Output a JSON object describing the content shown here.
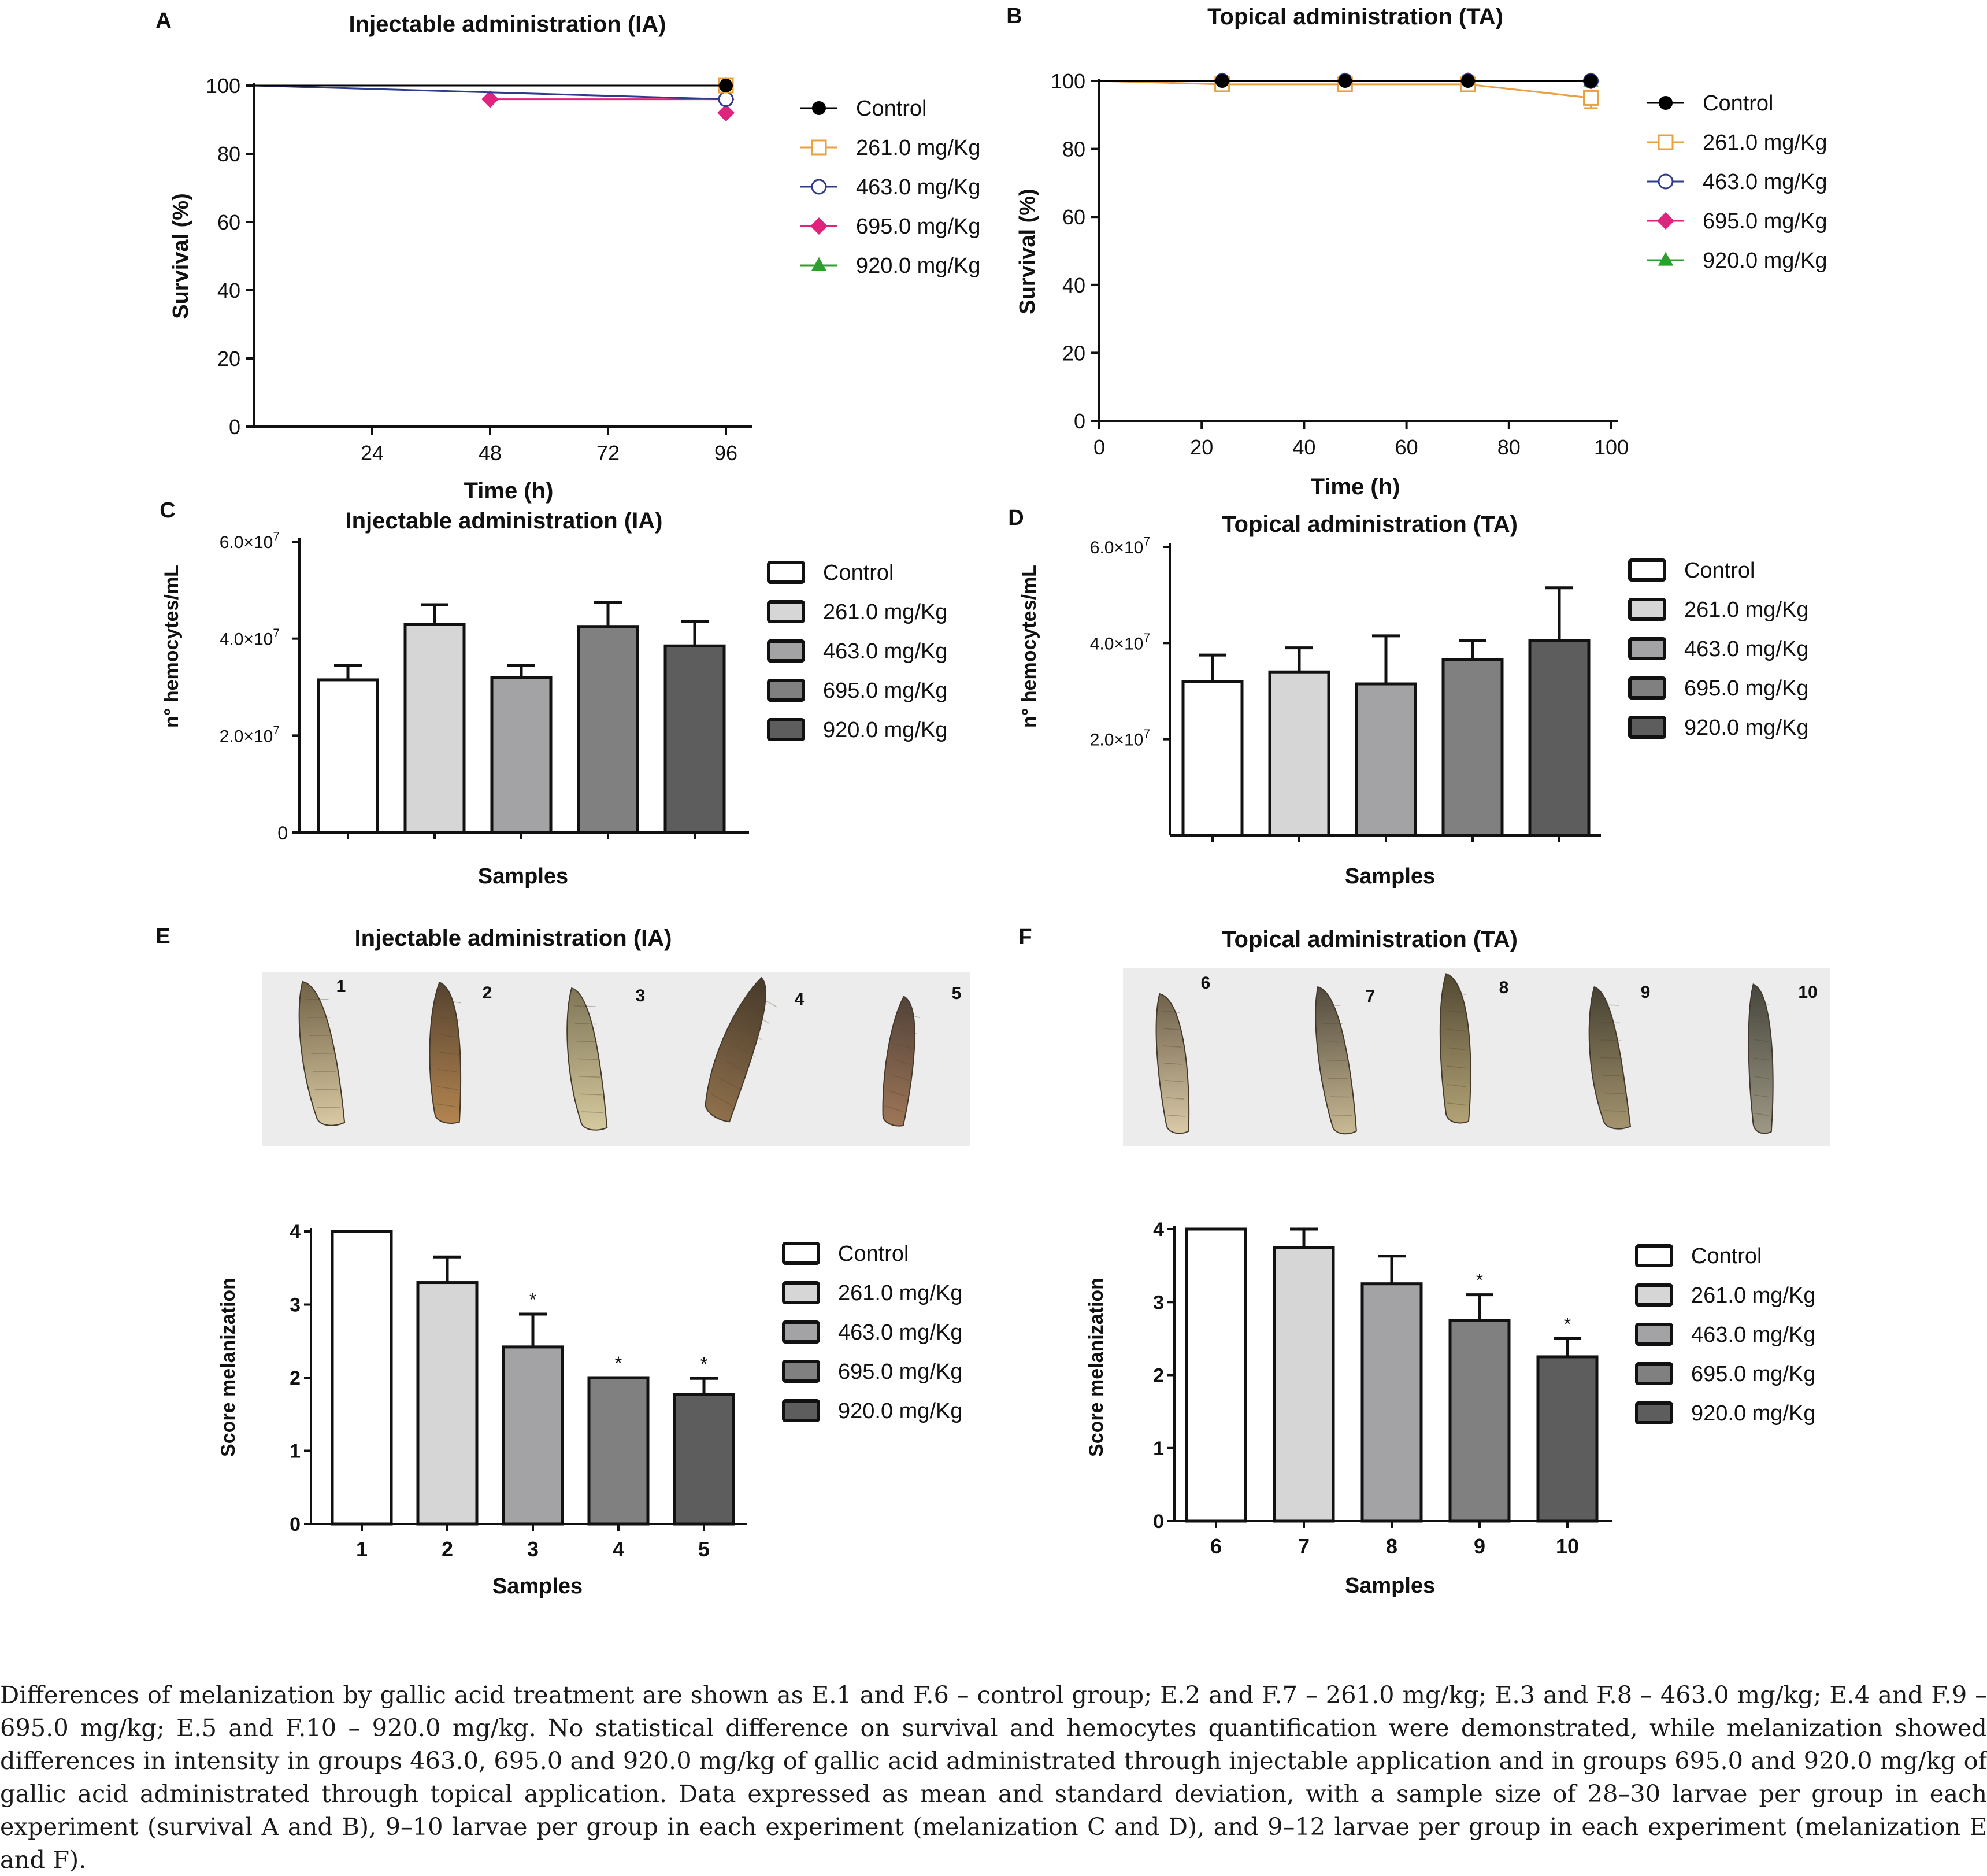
{
  "panels": {
    "A": {
      "letter": "A",
      "title": "Injectable administration (IA)"
    },
    "B": {
      "letter": "B",
      "title": "Topical administration (TA)"
    },
    "C": {
      "letter": "C",
      "title": "Injectable administration (IA)"
    },
    "D": {
      "letter": "D",
      "title": "Topical administration (TA)"
    },
    "E": {
      "letter": "E",
      "title": "Injectable administration (IA)",
      "photo_numbers": [
        "1",
        "2",
        "3",
        "4",
        "5"
      ]
    },
    "F": {
      "letter": "F",
      "title": "Topical administration (TA)",
      "photo_numbers": [
        "6",
        "7",
        "8",
        "9",
        "10"
      ]
    }
  },
  "legend_labels": [
    "Control",
    "261.0 mg/Kg",
    "463.0 mg/Kg",
    "695.0 mg/Kg",
    "920.0 mg/Kg"
  ],
  "line_colors": [
    "#000000",
    "#e8a040",
    "#2e3b8c",
    "#e0237c",
    "#2ca02c"
  ],
  "bar_colors": [
    "#ffffff",
    "#d6d6d6",
    "#a3a3a5",
    "#808080",
    "#5d5d5d"
  ],
  "caption": "Differences of melanization by gallic acid treatment are shown as E.1 and F.6 – control group; E.2 and F.7 – 261.0 mg/kg; E.3 and F.8 – 463.0 mg/kg; E.4 and F.9 – 695.0 mg/kg; E.5 and F.10 – 920.0 mg/kg. No statistical difference on survival and hemocytes quantification were demonstrated, while melanization showed differences in intensity in groups 463.0, 695.0 and 920.0 mg/kg of gallic acid administrated through injectable application and in groups 695.0 and 920.0 mg/kg of gallic acid administrated through topical application. Data expressed as mean and standard deviation, with a sample size of 28–30 larvae per group in each experiment (survival A and B), 9–10 larvae per group in each experiment (melanization C and D), and 9–12 larvae per group in each experiment (melanization E and F).",
  "chart_data": [
    {
      "panel": "A",
      "type": "line",
      "title": "Injectable administration (IA)",
      "xlabel": "Time (h)",
      "ylabel": "Survival (%)",
      "xlim": [
        0,
        100
      ],
      "ylim": [
        0,
        100
      ],
      "xticks": [
        24,
        48,
        72,
        96
      ],
      "yticks": [
        0,
        20,
        40,
        60,
        80,
        100
      ],
      "legend": "right",
      "series": [
        {
          "name": "Control",
          "marker": "circle-filled",
          "x": [
            0,
            96
          ],
          "y": [
            100,
            100
          ],
          "err": [
            0,
            0
          ]
        },
        {
          "name": "261.0 mg/Kg",
          "marker": "square-open",
          "x": [
            0,
            96
          ],
          "y": [
            100,
            100
          ],
          "err": [
            0,
            0
          ]
        },
        {
          "name": "463.0 mg/Kg",
          "marker": "circle-open",
          "x": [
            0,
            96
          ],
          "y": [
            100,
            96
          ],
          "err": [
            0,
            0
          ]
        },
        {
          "name": "695.0 mg/Kg",
          "marker": "diamond-filled",
          "x": [
            48,
            96
          ],
          "y": [
            96,
            96
          ],
          "err": [
            0,
            0
          ],
          "extra_points": [
            [
              96,
              92
            ]
          ]
        },
        {
          "name": "920.0 mg/Kg",
          "marker": "triangle-filled",
          "x": [
            0,
            96
          ],
          "y": [
            100,
            100
          ],
          "err": [
            0,
            0
          ]
        }
      ]
    },
    {
      "panel": "B",
      "type": "line",
      "title": "Topical administration (TA)",
      "xlabel": "Time (h)",
      "ylabel": "Survival (%)",
      "xlim": [
        0,
        100
      ],
      "ylim": [
        0,
        100
      ],
      "xticks": [
        0,
        20,
        40,
        60,
        80,
        100
      ],
      "yticks": [
        0,
        20,
        40,
        60,
        80,
        100
      ],
      "legend": "right",
      "series": [
        {
          "name": "Control",
          "marker": "circle-filled",
          "x": [
            0,
            24,
            48,
            72,
            96
          ],
          "y": [
            100,
            100,
            100,
            100,
            100
          ],
          "err": [
            0,
            0,
            0,
            0,
            0
          ]
        },
        {
          "name": "261.0 mg/Kg",
          "marker": "square-open",
          "x": [
            0,
            24,
            48,
            72,
            96
          ],
          "y": [
            100,
            99,
            99,
            99,
            95
          ],
          "err": [
            0,
            0,
            0,
            0,
            3
          ]
        },
        {
          "name": "463.0 mg/Kg",
          "marker": "circle-open",
          "x": [
            0,
            24,
            48,
            72,
            96
          ],
          "y": [
            100,
            100,
            100,
            100,
            100
          ],
          "err": [
            0,
            0,
            0,
            0,
            0
          ]
        },
        {
          "name": "695.0 mg/Kg",
          "marker": "diamond-filled",
          "x": [
            0,
            24,
            48,
            72,
            96
          ],
          "y": [
            100,
            100,
            100,
            100,
            100
          ],
          "err": [
            0,
            0,
            0,
            0,
            0
          ]
        },
        {
          "name": "920.0 mg/Kg",
          "marker": "triangle-filled",
          "x": [
            0,
            24,
            48,
            72,
            96
          ],
          "y": [
            100,
            100,
            100,
            100,
            100
          ],
          "err": [
            0,
            0,
            0,
            0,
            0
          ]
        }
      ]
    },
    {
      "panel": "C",
      "type": "bar",
      "title": "Injectable administration (IA)",
      "xlabel": "Samples",
      "ylabel": "n° hemocytes/mL",
      "ylim": [
        0,
        60000000
      ],
      "ytick_values": [
        0,
        20000000,
        40000000,
        60000000
      ],
      "ytick_labels": [
        "0",
        "2.0×10",
        "4.0×10",
        "6.0×10"
      ],
      "ytick_exponent": "7",
      "categories": [
        "Control",
        "261.0 mg/Kg",
        "463.0 mg/Kg",
        "695.0 mg/Kg",
        "920.0 mg/Kg"
      ],
      "values": [
        31500000,
        43000000,
        32000000,
        42500000,
        38500000
      ],
      "errors": [
        3000000,
        4000000,
        2500000,
        5000000,
        5000000
      ],
      "legend": "right"
    },
    {
      "panel": "D",
      "type": "bar",
      "title": "Topical administration (TA)",
      "xlabel": "Samples",
      "ylabel": "n° hemocytes/mL",
      "ylim": [
        0,
        60000000
      ],
      "ytick_values": [
        20000000,
        40000000,
        60000000
      ],
      "ytick_labels": [
        "2.0×10",
        "4.0×10",
        "6.0×10"
      ],
      "ytick_exponent": "7",
      "categories": [
        "Control",
        "261.0 mg/Kg",
        "463.0 mg/Kg",
        "695.0 mg/Kg",
        "920.0 mg/Kg"
      ],
      "values": [
        32000000,
        34000000,
        31500000,
        36500000,
        40500000
      ],
      "errors": [
        5500000,
        5000000,
        10000000,
        4000000,
        11000000
      ],
      "legend": "right"
    },
    {
      "panel": "E",
      "type": "bar",
      "title": "Injectable administration (IA)",
      "xlabel": "Samples",
      "ylabel": "Score melanization",
      "ylim": [
        0,
        4
      ],
      "yticks": [
        0,
        1,
        2,
        3,
        4
      ],
      "categories": [
        "1",
        "2",
        "3",
        "4",
        "5"
      ],
      "values": [
        4,
        3.3,
        2.42,
        2.0,
        1.77
      ],
      "errors": [
        0,
        0.35,
        0.45,
        0,
        0.22
      ],
      "significant": [
        "",
        "",
        "*",
        "*",
        "*"
      ],
      "series_names": [
        "Control",
        "261.0 mg/Kg",
        "463.0 mg/Kg",
        "695.0 mg/Kg",
        "920.0 mg/Kg"
      ],
      "legend": "right"
    },
    {
      "panel": "F",
      "type": "bar",
      "title": "Topical administration (TA)",
      "xlabel": "Samples",
      "ylabel": "Score melanization",
      "ylim": [
        0,
        4
      ],
      "yticks": [
        0,
        1,
        2,
        3,
        4
      ],
      "categories": [
        "6",
        "7",
        "8",
        "9",
        "10"
      ],
      "values": [
        4,
        3.75,
        3.25,
        2.75,
        2.25
      ],
      "errors": [
        0,
        0.25,
        0.38,
        0.35,
        0.25
      ],
      "significant": [
        "",
        "",
        "",
        "*",
        "*"
      ],
      "series_names": [
        "Control",
        "261.0 mg/Kg",
        "463.0 mg/Kg",
        "695.0 mg/Kg",
        "920.0 mg/Kg"
      ],
      "legend": "right"
    }
  ]
}
